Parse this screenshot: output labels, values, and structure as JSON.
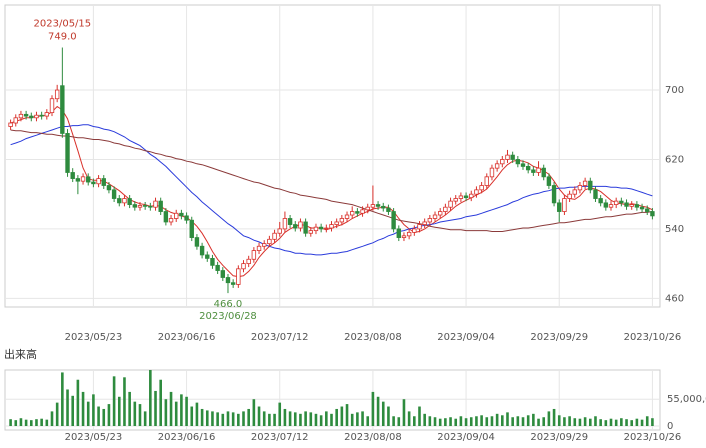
{
  "chart_data": {
    "type": "candlestick",
    "categories": [
      null,
      null,
      null,
      null,
      null,
      null,
      null,
      null,
      null,
      null,
      null,
      null,
      null,
      null,
      null,
      null,
      "2023/05/23",
      null,
      null,
      null,
      null,
      null,
      null,
      null,
      null,
      null,
      null,
      null,
      null,
      null,
      null,
      null,
      null,
      null,
      "2023/06/16",
      null,
      null,
      null,
      null,
      null,
      null,
      null,
      null,
      null,
      null,
      null,
      null,
      null,
      null,
      null,
      null,
      null,
      "2023/07/12",
      null,
      null,
      null,
      null,
      null,
      null,
      null,
      null,
      null,
      null,
      null,
      null,
      null,
      null,
      null,
      null,
      null,
      "2023/08/08",
      null,
      null,
      null,
      null,
      null,
      null,
      null,
      null,
      null,
      null,
      null,
      null,
      null,
      null,
      null,
      null,
      null,
      "2023/09/04",
      null,
      null,
      null,
      null,
      null,
      null,
      null,
      null,
      null,
      null,
      null,
      null,
      null,
      null,
      null,
      null,
      null,
      "2023/09/29",
      null,
      null,
      null,
      null,
      null,
      null,
      null,
      null,
      null,
      null,
      null,
      null,
      null,
      null,
      null,
      null,
      null,
      "2023/10/26"
    ],
    "open": [
      658,
      662,
      668,
      672,
      670,
      668,
      671,
      670,
      674,
      690,
      705,
      650,
      605,
      598,
      595,
      600,
      594,
      592,
      598,
      590,
      585,
      575,
      570,
      575,
      568,
      565,
      567,
      566,
      565,
      572,
      560,
      548,
      552,
      558,
      555,
      550,
      530,
      520,
      510,
      506,
      498,
      492,
      484,
      478,
      476,
      494,
      500,
      505,
      515,
      520,
      523,
      528,
      535,
      540,
      552,
      545,
      541,
      548,
      535,
      538,
      542,
      540,
      541,
      545,
      548,
      552,
      556,
      560,
      558,
      562,
      565,
      568,
      566,
      564,
      560,
      540,
      530,
      532,
      536,
      540,
      545,
      548,
      552,
      556,
      560,
      565,
      572,
      575,
      578,
      576,
      580,
      585,
      590,
      600,
      610,
      615,
      620,
      625,
      620,
      615,
      612,
      608,
      605,
      610,
      600,
      590,
      570,
      560,
      575,
      580,
      585,
      590,
      595,
      585,
      575,
      570,
      565,
      568,
      572,
      570,
      566,
      568,
      565,
      563,
      560
    ],
    "high": [
      666,
      672,
      676,
      676,
      674,
      675,
      675,
      678,
      694,
      706,
      749,
      655,
      610,
      602,
      604,
      604,
      598,
      602,
      602,
      594,
      589,
      579,
      579,
      579,
      572,
      571,
      571,
      570,
      576,
      576,
      564,
      556,
      562,
      562,
      559,
      554,
      534,
      524,
      514,
      510,
      502,
      496,
      488,
      482,
      498,
      504,
      509,
      519,
      524,
      527,
      532,
      539,
      548,
      560,
      556,
      549,
      552,
      552,
      542,
      546,
      546,
      545,
      549,
      552,
      556,
      560,
      566,
      564,
      566,
      569,
      590,
      572,
      570,
      568,
      564,
      544,
      536,
      540,
      544,
      549,
      552,
      556,
      560,
      564,
      569,
      576,
      579,
      582,
      582,
      584,
      589,
      594,
      604,
      614,
      619,
      624,
      631,
      629,
      624,
      619,
      616,
      612,
      618,
      614,
      604,
      594,
      574,
      579,
      584,
      589,
      594,
      599,
      599,
      589,
      579,
      574,
      572,
      576,
      576,
      574,
      572,
      572,
      569,
      567,
      564
    ],
    "low": [
      654,
      658,
      664,
      666,
      664,
      664,
      666,
      666,
      670,
      686,
      645,
      600,
      594,
      580,
      591,
      590,
      588,
      588,
      586,
      581,
      571,
      566,
      566,
      564,
      561,
      561,
      562,
      561,
      561,
      556,
      544,
      544,
      548,
      551,
      546,
      526,
      516,
      506,
      502,
      494,
      488,
      480,
      466,
      472,
      472,
      490,
      496,
      501,
      511,
      516,
      519,
      524,
      531,
      536,
      541,
      537,
      537,
      531,
      531,
      534,
      536,
      536,
      537,
      541,
      544,
      548,
      552,
      554,
      554,
      558,
      561,
      562,
      560,
      556,
      536,
      526,
      526,
      528,
      532,
      536,
      541,
      544,
      548,
      552,
      556,
      561,
      568,
      571,
      572,
      572,
      576,
      581,
      586,
      596,
      606,
      611,
      616,
      616,
      611,
      608,
      604,
      601,
      601,
      596,
      586,
      566,
      548,
      556,
      571,
      576,
      581,
      586,
      581,
      571,
      566,
      561,
      561,
      564,
      566,
      562,
      562,
      561,
      559,
      556,
      551
    ],
    "close": [
      662,
      668,
      672,
      670,
      668,
      671,
      670,
      674,
      690,
      700,
      650,
      605,
      598,
      595,
      600,
      594,
      592,
      598,
      590,
      585,
      575,
      570,
      575,
      568,
      565,
      567,
      566,
      565,
      572,
      560,
      548,
      552,
      558,
      555,
      550,
      530,
      520,
      510,
      506,
      498,
      492,
      484,
      478,
      476,
      494,
      500,
      505,
      515,
      520,
      523,
      528,
      535,
      540,
      552,
      545,
      541,
      548,
      535,
      538,
      542,
      540,
      541,
      545,
      548,
      552,
      556,
      560,
      558,
      562,
      565,
      568,
      566,
      564,
      560,
      540,
      530,
      532,
      536,
      540,
      545,
      548,
      552,
      556,
      560,
      565,
      572,
      575,
      578,
      576,
      580,
      585,
      590,
      600,
      610,
      615,
      620,
      625,
      620,
      615,
      612,
      608,
      605,
      610,
      600,
      590,
      570,
      560,
      575,
      580,
      585,
      590,
      595,
      585,
      575,
      570,
      565,
      568,
      572,
      570,
      566,
      568,
      565,
      563,
      560,
      555
    ],
    "ylim": [
      450,
      798
    ],
    "yticks": [
      460,
      540,
      620,
      700
    ],
    "grid": true,
    "candle_up_color": "#d9302a",
    "candle_down_color": "#2e8b3e",
    "moving_averages": [
      {
        "color": "#d9302a",
        "values": [
          662,
          664,
          666,
          668,
          668,
          670,
          670,
          671,
          675,
          681,
          677,
          667,
          649,
          630,
          610,
          598,
          596,
          596,
          595,
          592,
          588,
          584,
          579,
          574,
          571,
          569,
          568,
          566,
          567,
          566,
          562,
          559,
          557,
          555,
          553,
          549,
          543,
          535,
          525,
          514,
          505,
          498,
          492,
          486,
          485,
          486,
          491,
          498,
          507,
          514,
          520,
          524,
          529,
          536,
          540,
          543,
          545,
          544,
          541,
          541,
          541,
          539,
          541,
          543,
          545,
          548,
          552,
          555,
          558,
          560,
          563,
          564,
          565,
          565,
          560,
          552,
          545,
          540,
          536,
          537,
          540,
          544,
          548,
          552,
          556,
          561,
          566,
          570,
          573,
          576,
          579,
          582,
          586,
          593,
          600,
          608,
          614,
          618,
          619,
          618,
          616,
          612,
          610,
          607,
          603,
          595,
          586,
          579,
          575,
          574,
          578,
          585,
          587,
          586,
          583,
          578,
          573,
          570,
          569,
          568,
          569,
          568,
          566,
          565,
          562
        ]
      },
      {
        "color": "#2a3bdb",
        "values": [
          637,
          639,
          641,
          644,
          646,
          648,
          650,
          652,
          654,
          656,
          658,
          658,
          659,
          659,
          660,
          660,
          658,
          657,
          655,
          654,
          652,
          649,
          646,
          642,
          639,
          636,
          631,
          626,
          622,
          617,
          612,
          606,
          600,
          594,
          588,
          582,
          577,
          571,
          566,
          561,
          556,
          551,
          546,
          542,
          537,
          532,
          530,
          527,
          525,
          522,
          520,
          518,
          517,
          515,
          514,
          512,
          512,
          511,
          511,
          510,
          510,
          511,
          512,
          512,
          513,
          514,
          516,
          518,
          520,
          522,
          524,
          527,
          529,
          532,
          534,
          537,
          538,
          540,
          541,
          543,
          544,
          545,
          546,
          548,
          549,
          550,
          551,
          552,
          554,
          555,
          556,
          558,
          560,
          562,
          564,
          566,
          568,
          571,
          573,
          576,
          578,
          580,
          581,
          583,
          584,
          586,
          587,
          587,
          588,
          588,
          589,
          589,
          589,
          589,
          589,
          589,
          588,
          588,
          587,
          587,
          586,
          584,
          582,
          580,
          578
        ]
      },
      {
        "color": "#8b3a3a",
        "values": [
          654,
          653,
          653,
          652,
          651,
          651,
          650,
          649,
          649,
          648,
          647,
          647,
          646,
          645,
          645,
          644,
          643,
          643,
          642,
          641,
          639,
          638,
          636,
          635,
          633,
          632,
          630,
          629,
          627,
          626,
          624,
          623,
          621,
          620,
          618,
          617,
          615,
          614,
          612,
          610,
          608,
          606,
          604,
          602,
          600,
          598,
          596,
          594,
          593,
          591,
          589,
          587,
          586,
          584,
          582,
          581,
          579,
          578,
          577,
          576,
          575,
          574,
          572,
          571,
          570,
          569,
          568,
          566,
          564,
          562,
          560,
          558,
          556,
          554,
          552,
          550,
          549,
          548,
          547,
          546,
          545,
          543,
          542,
          541,
          540,
          539,
          539,
          539,
          538,
          538,
          538,
          538,
          538,
          537,
          537,
          537,
          538,
          539,
          540,
          541,
          541,
          542,
          543,
          544,
          545,
          546,
          547,
          547,
          548,
          549,
          550,
          551,
          551,
          552,
          553,
          554,
          554,
          555,
          556,
          557,
          557,
          558,
          559,
          559,
          560
        ]
      }
    ],
    "volume": {
      "label": "出来高",
      "color": "#2e8b3e",
      "ylim": [
        0,
        115000000
      ],
      "yticks": [
        0,
        {
          "value": 55000000,
          "label": "55,000,0"
        }
      ],
      "values": [
        14000000,
        12000000,
        16000000,
        13000000,
        12000000,
        14000000,
        15000000,
        13000000,
        30000000,
        48000000,
        110000000,
        75000000,
        62000000,
        95000000,
        70000000,
        50000000,
        65000000,
        40000000,
        35000000,
        45000000,
        102000000,
        60000000,
        100000000,
        70000000,
        50000000,
        45000000,
        30000000,
        115000000,
        72000000,
        95000000,
        55000000,
        70000000,
        50000000,
        65000000,
        60000000,
        40000000,
        48000000,
        35000000,
        32000000,
        30000000,
        28000000,
        25000000,
        30000000,
        28000000,
        25000000,
        30000000,
        35000000,
        55000000,
        40000000,
        30000000,
        25000000,
        25000000,
        48000000,
        35000000,
        30000000,
        28000000,
        25000000,
        30000000,
        28000000,
        25000000,
        22000000,
        30000000,
        25000000,
        35000000,
        40000000,
        45000000,
        25000000,
        28000000,
        30000000,
        20000000,
        70000000,
        60000000,
        50000000,
        40000000,
        20000000,
        18000000,
        55000000,
        30000000,
        20000000,
        40000000,
        25000000,
        20000000,
        18000000,
        15000000,
        16000000,
        18000000,
        15000000,
        20000000,
        16000000,
        18000000,
        20000000,
        22000000,
        18000000,
        20000000,
        25000000,
        22000000,
        28000000,
        18000000,
        20000000,
        18000000,
        22000000,
        25000000,
        15000000,
        18000000,
        30000000,
        35000000,
        22000000,
        18000000,
        20000000,
        16000000,
        15000000,
        18000000,
        15000000,
        20000000,
        14000000,
        12000000,
        15000000,
        13000000,
        16000000,
        14000000,
        12000000,
        15000000,
        13000000,
        20000000,
        16000000
      ]
    },
    "annotations": {
      "high": {
        "date": "2023/05/15",
        "value": 749,
        "label": "749.0"
      },
      "low": {
        "date": "2023/06/28",
        "value": 466,
        "label": "466.0"
      }
    }
  }
}
